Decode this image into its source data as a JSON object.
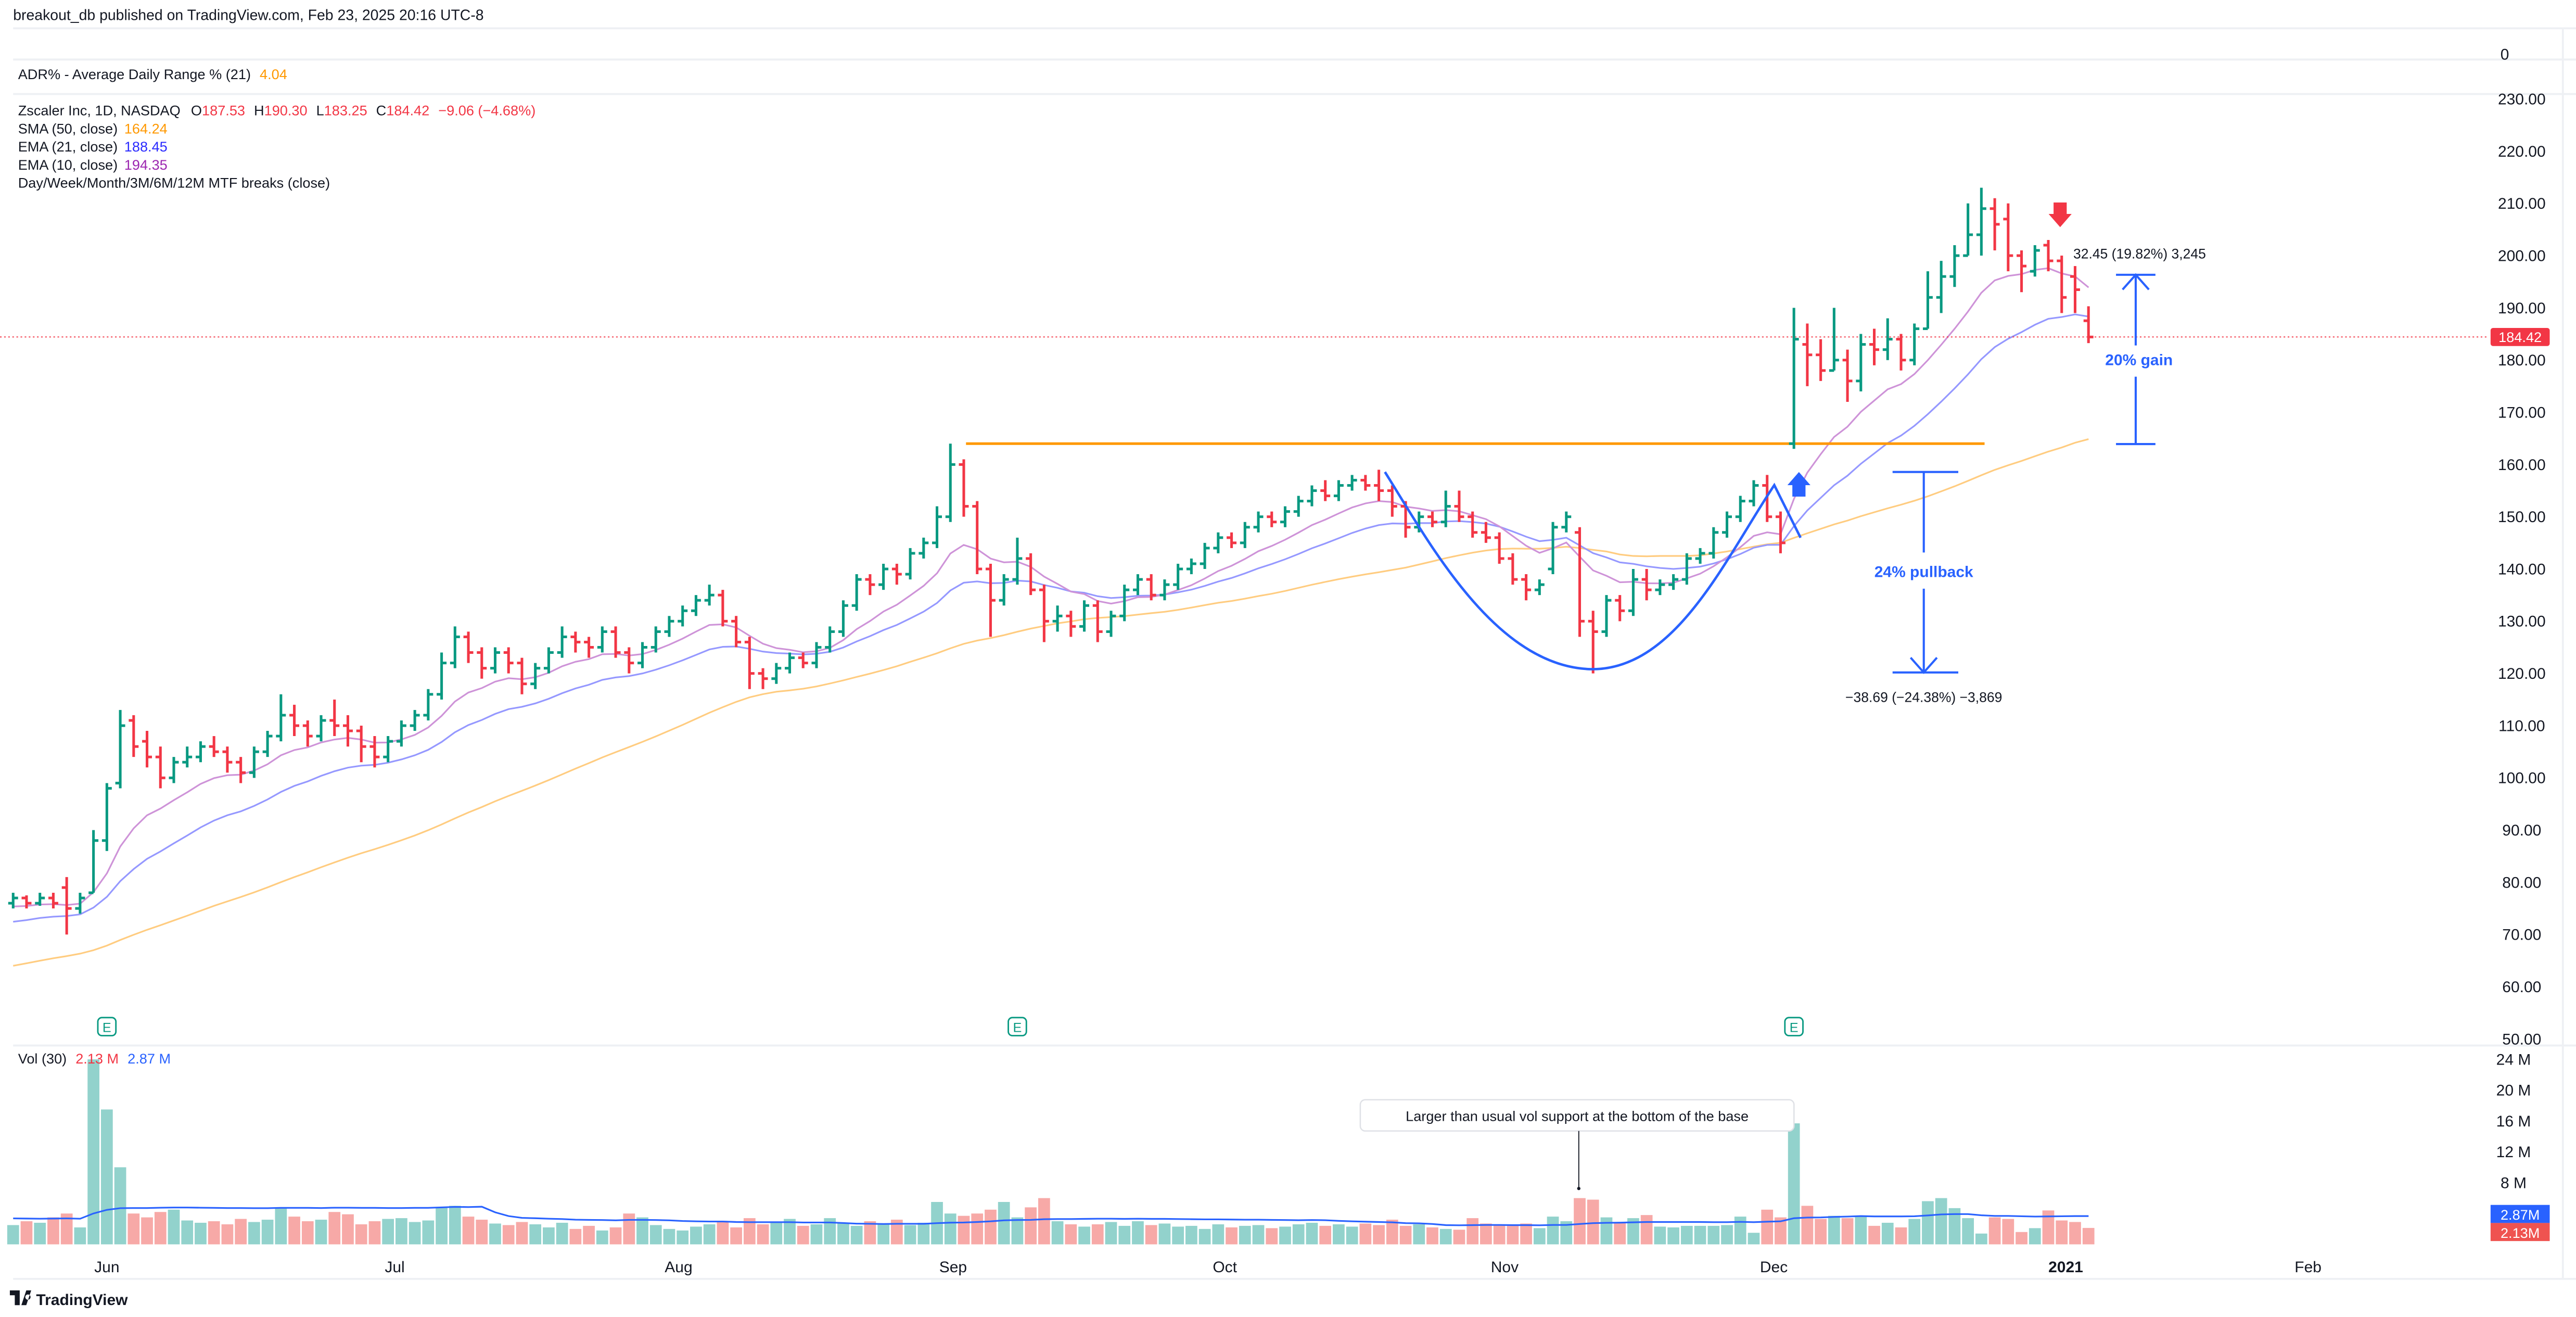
{
  "header": {
    "published": "breakout_db published on TradingView.com, Feb 23, 2025 20:16 UTC-8"
  },
  "adr": {
    "label": "ADR% - Average Daily Range % (21)",
    "value": "4.04",
    "axis_label": "0"
  },
  "legend": {
    "symbol": "Zscaler Inc, 1D, NASDAQ",
    "o_label": "O",
    "o": "187.53",
    "h_label": "H",
    "h": "190.30",
    "l_label": "L",
    "l": "183.25",
    "c_label": "C",
    "c": "184.42",
    "change": "−9.06 (−4.68%)",
    "sma50_label": "SMA (50, close)",
    "sma50": "164.24",
    "ema21_label": "EMA (21, close)",
    "ema21": "188.45",
    "ema10_label": "EMA (10, close)",
    "ema10": "194.35",
    "mtf_label": "Day/Week/Month/3M/6M/12M MTF breaks (close)"
  },
  "volume_legend": {
    "label": "Vol (30)",
    "vol": "2.13 M",
    "ma": "2.87 M"
  },
  "annotations": {
    "pullback_label": "24% pullback",
    "pullback_measure": "−38.69 (−24.38%) −3,869",
    "gain_label": "20% gain",
    "gain_measure": "32.45 (19.82%) 3,245",
    "volume_note": "Larger than usual vol support at the bottom of the base"
  },
  "badges": {
    "last_price": "184.42",
    "vol_ma": "2.87M",
    "vol": "2.13M"
  },
  "footer": {
    "logo_text": "TradingView"
  },
  "colors": {
    "up": "#089981",
    "down": "#F23645",
    "vol_up": "#92D2CC",
    "vol_down": "#F7A9A7",
    "ema10": "#CE93D8",
    "ema21": "#9598FF",
    "sma50": "#FFCC80",
    "vol_ma": "#2962FF",
    "resistance": "#FF9800",
    "annotation": "#2962FF"
  },
  "chart_data": {
    "type": "ohlc",
    "symbol": "Zscaler Inc",
    "interval": "1D",
    "exchange": "NASDAQ",
    "price_axis": {
      "ticks": [
        230,
        220,
        210,
        200,
        190,
        180,
        170,
        160,
        150,
        140,
        130,
        120,
        110,
        100,
        90,
        80,
        70,
        60,
        50
      ],
      "range": [
        50,
        230
      ]
    },
    "volume_axis": {
      "ticks": [
        {
          "v": 24,
          "label": "24 M"
        },
        {
          "v": 20,
          "label": "20 M"
        },
        {
          "v": 16,
          "label": "16 M"
        },
        {
          "v": 12,
          "label": "12 M"
        },
        {
          "v": 8,
          "label": "8 M"
        }
      ]
    },
    "x_ticks": [
      {
        "label": "Jun",
        "bar": 7
      },
      {
        "label": "Jul",
        "bar": 28.5
      },
      {
        "label": "Aug",
        "bar": 49.7
      },
      {
        "label": "Sep",
        "bar": 70.2
      },
      {
        "label": "Oct",
        "bar": 90.5
      },
      {
        "label": "Nov",
        "bar": 111.4
      },
      {
        "label": "Dec",
        "bar": 131.5
      },
      {
        "label": "2021",
        "bar": 153.3,
        "bold": true
      },
      {
        "label": "Feb",
        "bar": 171.4
      }
    ],
    "earnings_bars": [
      7,
      75,
      133
    ],
    "earnings_label": "E",
    "resistance_level": 164,
    "bars": [
      [
        76,
        78,
        75,
        77
      ],
      [
        77,
        77.5,
        75,
        76
      ],
      [
        76,
        78,
        75.5,
        77
      ],
      [
        77,
        78,
        75,
        76
      ],
      [
        79,
        81,
        70,
        75
      ],
      [
        75,
        78,
        74,
        77
      ],
      [
        78,
        90,
        78,
        88
      ],
      [
        88,
        99,
        86,
        98
      ],
      [
        99,
        113,
        98,
        110
      ],
      [
        111,
        112,
        104,
        106
      ],
      [
        107,
        109,
        102,
        104
      ],
      [
        104,
        106,
        98,
        100
      ],
      [
        100,
        104,
        99,
        103
      ],
      [
        103,
        106,
        102,
        104
      ],
      [
        104,
        107,
        103,
        106
      ],
      [
        106,
        108,
        104,
        105
      ],
      [
        105,
        106,
        101,
        103
      ],
      [
        103,
        104,
        99,
        101
      ],
      [
        101,
        106,
        100,
        105
      ],
      [
        105,
        109,
        104,
        108
      ],
      [
        108,
        116,
        107,
        112
      ],
      [
        112,
        114,
        108,
        110
      ],
      [
        110,
        111,
        106,
        108
      ],
      [
        108,
        112,
        107,
        111
      ],
      [
        111,
        115,
        108,
        110
      ],
      [
        110,
        112,
        106,
        109
      ],
      [
        109,
        110,
        103,
        106
      ],
      [
        106,
        108,
        102,
        104
      ],
      [
        104,
        108,
        103,
        107
      ],
      [
        107,
        111,
        106,
        110
      ],
      [
        110,
        113,
        109,
        112
      ],
      [
        112,
        117,
        111,
        116
      ],
      [
        116,
        124,
        115,
        122
      ],
      [
        122,
        129,
        121,
        127
      ],
      [
        127,
        128,
        122,
        124
      ],
      [
        124,
        125,
        119,
        121
      ],
      [
        121,
        125,
        120,
        124
      ],
      [
        124,
        125,
        120,
        122
      ],
      [
        122,
        123,
        116,
        118
      ],
      [
        118,
        122,
        117,
        121
      ],
      [
        121,
        125,
        120,
        124
      ],
      [
        124,
        129,
        123,
        127
      ],
      [
        127,
        128,
        124,
        126
      ],
      [
        126,
        127,
        123,
        125
      ],
      [
        125,
        129,
        124,
        128
      ],
      [
        128,
        129,
        123,
        124
      ],
      [
        124,
        125,
        120,
        122
      ],
      [
        122,
        126,
        121,
        125
      ],
      [
        125,
        129,
        124,
        128
      ],
      [
        128,
        131,
        127,
        130
      ],
      [
        130,
        133,
        129,
        132
      ],
      [
        132,
        135,
        131,
        134
      ],
      [
        134,
        137,
        133,
        135
      ],
      [
        135,
        136,
        129,
        130
      ],
      [
        130,
        131,
        125,
        126
      ],
      [
        126,
        127,
        117,
        120
      ],
      [
        120,
        121,
        117,
        119
      ],
      [
        119,
        122,
        118,
        121
      ],
      [
        121,
        124,
        120,
        123
      ],
      [
        123,
        124,
        121,
        122
      ],
      [
        122,
        126,
        121,
        125
      ],
      [
        125,
        129,
        124,
        128
      ],
      [
        128,
        134,
        127,
        133
      ],
      [
        133,
        139,
        132,
        138
      ],
      [
        138,
        139,
        135,
        137
      ],
      [
        137,
        141,
        136,
        140
      ],
      [
        140,
        141,
        137,
        139
      ],
      [
        139,
        144,
        138,
        143
      ],
      [
        143,
        146,
        142,
        145
      ],
      [
        145,
        152,
        144,
        150
      ],
      [
        150,
        164,
        149,
        160
      ],
      [
        160,
        161,
        150,
        152
      ],
      [
        152,
        153,
        139,
        140
      ],
      [
        140,
        141,
        127,
        134
      ],
      [
        134,
        139,
        133,
        138
      ],
      [
        138,
        146,
        137,
        142
      ],
      [
        142,
        143,
        135,
        136
      ],
      [
        136,
        137,
        126,
        130
      ],
      [
        130,
        133,
        128,
        131
      ],
      [
        131,
        132,
        127,
        129
      ],
      [
        129,
        134,
        128,
        133
      ],
      [
        133,
        134,
        126,
        128
      ],
      [
        128,
        132,
        127,
        131
      ],
      [
        131,
        137,
        130,
        136
      ],
      [
        136,
        139,
        135,
        138
      ],
      [
        138,
        139,
        134,
        135
      ],
      [
        135,
        138,
        134,
        137
      ],
      [
        137,
        141,
        136,
        140
      ],
      [
        140,
        142,
        139,
        141
      ],
      [
        141,
        145,
        140,
        144
      ],
      [
        144,
        147,
        143,
        146
      ],
      [
        146,
        147,
        144,
        145
      ],
      [
        145,
        149,
        144,
        148
      ],
      [
        148,
        151,
        147,
        150
      ],
      [
        150,
        151,
        148,
        149
      ],
      [
        149,
        152,
        148,
        151
      ],
      [
        151,
        154,
        150,
        153
      ],
      [
        153,
        156,
        152,
        155
      ],
      [
        155,
        157,
        153,
        154
      ],
      [
        154,
        157,
        153,
        156
      ],
      [
        156,
        158,
        155,
        157
      ],
      [
        157,
        158,
        155,
        156
      ],
      [
        156,
        159,
        153,
        155
      ],
      [
        155,
        156,
        150,
        152
      ],
      [
        152,
        153,
        146,
        148
      ],
      [
        148,
        151,
        147,
        150
      ],
      [
        150,
        151,
        148,
        149
      ],
      [
        149,
        155,
        148,
        152
      ],
      [
        152,
        155,
        149,
        150
      ],
      [
        150,
        151,
        146,
        147
      ],
      [
        147,
        149,
        145,
        146
      ],
      [
        146,
        147,
        141,
        142
      ],
      [
        142,
        143,
        137,
        138
      ],
      [
        138,
        139,
        134,
        136
      ],
      [
        136,
        138,
        135,
        137
      ],
      [
        140,
        149,
        139,
        148
      ],
      [
        148,
        151,
        147,
        150
      ],
      [
        147,
        148,
        127,
        130
      ],
      [
        130,
        132,
        120,
        128
      ],
      [
        128,
        135,
        127,
        134
      ],
      [
        134,
        135,
        130,
        132
      ],
      [
        132,
        140,
        131,
        138
      ],
      [
        138,
        140,
        134,
        136
      ],
      [
        136,
        138,
        135,
        137
      ],
      [
        137,
        139,
        136,
        138
      ],
      [
        138,
        143,
        137,
        142
      ],
      [
        142,
        144,
        141,
        143
      ],
      [
        143,
        148,
        142,
        147
      ],
      [
        147,
        151,
        146,
        150
      ],
      [
        150,
        154,
        149,
        153
      ],
      [
        153,
        157,
        152,
        156
      ],
      [
        156,
        158,
        149,
        150
      ],
      [
        150,
        151,
        143,
        145
      ],
      [
        164,
        190,
        163,
        184
      ],
      [
        183,
        187,
        175,
        181
      ],
      [
        181,
        184,
        176,
        178
      ],
      [
        178,
        190,
        178,
        180
      ],
      [
        180,
        182,
        172,
        176
      ],
      [
        176,
        185,
        174,
        183
      ],
      [
        183,
        186,
        179,
        182
      ],
      [
        182,
        188,
        180,
        184
      ],
      [
        184,
        185,
        178,
        180
      ],
      [
        180,
        187,
        179,
        186
      ],
      [
        186,
        197,
        186,
        192
      ],
      [
        192,
        199,
        189,
        196
      ],
      [
        196,
        202,
        194,
        200
      ],
      [
        200,
        210,
        200,
        204
      ],
      [
        204,
        213,
        200,
        209
      ],
      [
        209,
        211,
        201,
        206
      ],
      [
        207,
        210,
        197,
        200
      ],
      [
        200,
        201,
        193,
        198
      ],
      [
        197,
        202,
        196,
        201
      ],
      [
        202,
        203,
        197,
        199
      ],
      [
        199,
        200,
        189,
        192
      ],
      [
        196,
        198,
        189,
        193.48
      ],
      [
        187.53,
        190.3,
        183.25,
        184.42
      ]
    ],
    "volume_millions": [
      2.5,
      3,
      2.8,
      3.5,
      4,
      2.2,
      24,
      17.5,
      10,
      4,
      3.5,
      4.2,
      4.5,
      3.1,
      2.8,
      3,
      2.6,
      3.3,
      2.9,
      3.2,
      4.8,
      3.6,
      3,
      3.2,
      4.2,
      3.9,
      2.6,
      3,
      3.3,
      3.4,
      2.9,
      3.1,
      4.8,
      5,
      3.6,
      3.2,
      2.7,
      2.5,
      2.9,
      2.6,
      2.2,
      2.8,
      2,
      2.4,
      1.8,
      2.2,
      4,
      3.5,
      2.5,
      2,
      1.8,
      2.3,
      2.6,
      3,
      2.2,
      3.4,
      2.6,
      2.8,
      3.3,
      2.4,
      2.6,
      3.4,
      2.8,
      2.4,
      3,
      2.6,
      3.2,
      2.5,
      2.8,
      5.5,
      4,
      3.7,
      4,
      4.5,
      5.5,
      3.5,
      4.8,
      6,
      3,
      2.6,
      2.3,
      2.6,
      2.9,
      2.4,
      3,
      2.5,
      2.7,
      2.3,
      2.4,
      2,
      2.6,
      2.2,
      2.4,
      2.5,
      2.1,
      2.3,
      2.6,
      2.8,
      2.4,
      2.6,
      2.3,
      2.7,
      2.5,
      3.2,
      2.4,
      2.6,
      2.2,
      2,
      1.9,
      3.4,
      2.7,
      2.6,
      2.4,
      2.7,
      2.1,
      3.6,
      3,
      6,
      5.8,
      3.5,
      2.8,
      3.4,
      3.8,
      2.3,
      2.2,
      2.4,
      2.4,
      2.4,
      2.5,
      3.6,
      1.5,
      4.5,
      3.5,
      15.7,
      5,
      3.3,
      3.7,
      3.4,
      3.7,
      2.4,
      2.8,
      2.2,
      3.3,
      5.6,
      6,
      4.7,
      3.4,
      1.4,
      3.5,
      3.3,
      1.6,
      2.1,
      4.4,
      3.1,
      2.9,
      2.13
    ]
  }
}
